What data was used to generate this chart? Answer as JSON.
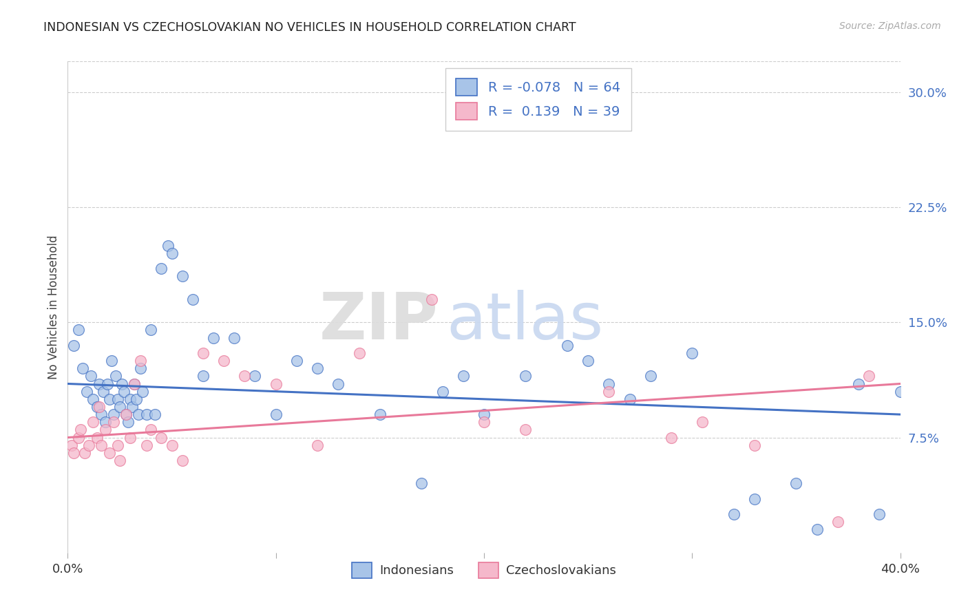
{
  "title": "INDONESIAN VS CZECHOSLOVAKIAN NO VEHICLES IN HOUSEHOLD CORRELATION CHART",
  "source": "Source: ZipAtlas.com",
  "ylabel": "No Vehicles in Household",
  "xlim": [
    0.0,
    40.0
  ],
  "ylim": [
    0.0,
    32.0
  ],
  "yticks_right": [
    7.5,
    15.0,
    22.5,
    30.0
  ],
  "ytick_labels_right": [
    "7.5%",
    "15.0%",
    "22.5%",
    "30.0%"
  ],
  "indonesian_color": "#A8C4E8",
  "czech_color": "#F5B8CB",
  "indonesian_line_color": "#4472C4",
  "czech_line_color": "#E8799A",
  "legend_R_indonesian": "R = -0.078",
  "legend_N_indonesian": "N = 64",
  "legend_R_czech": "R =  0.139",
  "legend_N_czech": "N = 39",
  "blue_line_start": 11.0,
  "blue_line_end": 9.0,
  "pink_line_start": 7.5,
  "pink_line_end": 11.0,
  "indonesian_x": [
    0.3,
    0.5,
    0.7,
    0.9,
    1.1,
    1.2,
    1.4,
    1.5,
    1.6,
    1.7,
    1.8,
    1.9,
    2.0,
    2.1,
    2.2,
    2.3,
    2.4,
    2.5,
    2.6,
    2.7,
    2.8,
    2.9,
    3.0,
    3.1,
    3.2,
    3.3,
    3.4,
    3.5,
    3.6,
    3.8,
    4.0,
    4.2,
    4.5,
    4.8,
    5.0,
    5.5,
    6.0,
    6.5,
    7.0,
    8.0,
    9.0,
    10.0,
    11.0,
    12.0,
    13.0,
    15.0,
    17.0,
    18.0,
    19.0,
    20.0,
    22.0,
    24.0,
    25.0,
    26.0,
    27.0,
    28.0,
    30.0,
    32.0,
    33.0,
    35.0,
    36.0,
    38.0,
    39.0,
    40.0
  ],
  "indonesian_y": [
    13.5,
    14.5,
    12.0,
    10.5,
    11.5,
    10.0,
    9.5,
    11.0,
    9.0,
    10.5,
    8.5,
    11.0,
    10.0,
    12.5,
    9.0,
    11.5,
    10.0,
    9.5,
    11.0,
    10.5,
    9.0,
    8.5,
    10.0,
    9.5,
    11.0,
    10.0,
    9.0,
    12.0,
    10.5,
    9.0,
    14.5,
    9.0,
    18.5,
    20.0,
    19.5,
    18.0,
    16.5,
    11.5,
    14.0,
    14.0,
    11.5,
    9.0,
    12.5,
    12.0,
    11.0,
    9.0,
    4.5,
    10.5,
    11.5,
    9.0,
    11.5,
    13.5,
    12.5,
    11.0,
    10.0,
    11.5,
    13.0,
    2.5,
    3.5,
    4.5,
    1.5,
    11.0,
    2.5,
    10.5
  ],
  "czech_x": [
    0.2,
    0.3,
    0.5,
    0.6,
    0.8,
    1.0,
    1.2,
    1.4,
    1.5,
    1.6,
    1.8,
    2.0,
    2.2,
    2.4,
    2.5,
    2.8,
    3.0,
    3.2,
    3.5,
    3.8,
    4.0,
    4.5,
    5.0,
    5.5,
    6.5,
    7.5,
    8.5,
    10.0,
    12.0,
    14.0,
    17.5,
    20.0,
    22.0,
    26.0,
    29.0,
    30.5,
    33.0,
    37.0,
    38.5
  ],
  "czech_y": [
    7.0,
    6.5,
    7.5,
    8.0,
    6.5,
    7.0,
    8.5,
    7.5,
    9.5,
    7.0,
    8.0,
    6.5,
    8.5,
    7.0,
    6.0,
    9.0,
    7.5,
    11.0,
    12.5,
    7.0,
    8.0,
    7.5,
    7.0,
    6.0,
    13.0,
    12.5,
    11.5,
    11.0,
    7.0,
    13.0,
    16.5,
    8.5,
    8.0,
    10.5,
    7.5,
    8.5,
    7.0,
    2.0,
    11.5
  ],
  "watermark_zip": "ZIP",
  "watermark_atlas": "atlas",
  "background_color": "#FFFFFF",
  "grid_color": "#CCCCCC"
}
